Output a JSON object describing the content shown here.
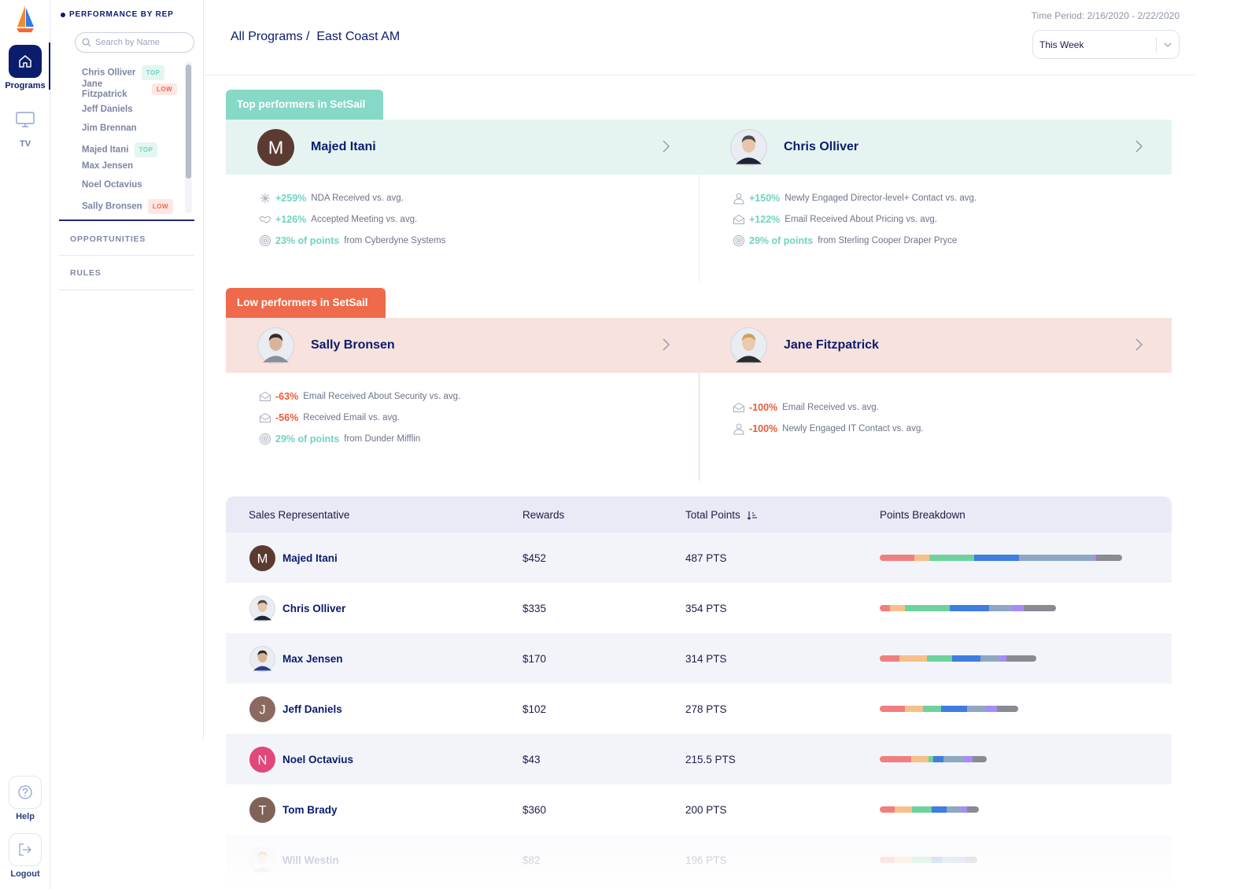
{
  "rail": {
    "programs_label": "Programs",
    "tv_label": "TV",
    "help_label": "Help",
    "logout_label": "Logout",
    "icons": {
      "programs": "home-icon",
      "tv": "monitor-icon",
      "help": "question-circle-icon",
      "logout": "logout-icon",
      "logo": "sailboat-logo"
    }
  },
  "panel": {
    "title": "PERFORMANCE BY REP",
    "search_placeholder": "Search by Name",
    "reps": [
      {
        "name": "Chris Olliver",
        "tag": "TOP"
      },
      {
        "name": "Jane Fitzpatrick",
        "tag": "LOW"
      },
      {
        "name": "Jeff Daniels",
        "tag": ""
      },
      {
        "name": "Jim Brennan",
        "tag": ""
      },
      {
        "name": "Majed Itani",
        "tag": "TOP"
      },
      {
        "name": "Max Jensen",
        "tag": ""
      },
      {
        "name": "Noel Octavius",
        "tag": ""
      },
      {
        "name": "Sally Bronsen",
        "tag": "LOW"
      }
    ],
    "opportunities_label": "OPPORTUNITIES",
    "rules_label": "RULES"
  },
  "header": {
    "breadcrumb_root": "All Programs /",
    "breadcrumb_current": "East Coast AM",
    "time_period": "Time Period: 2/16/2020 - 2/22/2020",
    "period_select": "This Week"
  },
  "top_performers": {
    "tab_label": "Top performers in SetSail",
    "cards": [
      {
        "name": "Majed Itani",
        "avatar": {
          "type": "initial",
          "initial": "M",
          "color": "#5b3a32"
        },
        "stats": [
          {
            "icon": "sparkle-icon",
            "value": "+259%",
            "text": "NDA Received vs. avg.",
            "tone": "pos"
          },
          {
            "icon": "handshake-icon",
            "value": "+126%",
            "text": "Accepted Meeting vs. avg.",
            "tone": "pos"
          },
          {
            "icon": "target-icon",
            "value": "23% of points",
            "text": "from Cyberdyne Systems",
            "tone": "pos"
          }
        ]
      },
      {
        "name": "Chris Olliver",
        "avatar": {
          "type": "photo",
          "skin": "#e8c4a8",
          "hair": "#4a4a4a",
          "shirt": "#1e2433"
        },
        "stats": [
          {
            "icon": "person-icon",
            "value": "+150%",
            "text": "Newly Engaged Director-level+ Contact vs. avg.",
            "tone": "pos"
          },
          {
            "icon": "envelope-open-icon",
            "value": "+122%",
            "text": "Email Received About Pricing vs. avg.",
            "tone": "pos"
          },
          {
            "icon": "target-icon",
            "value": "29% of points",
            "text": "from Sterling Cooper Draper Pryce",
            "tone": "pos"
          }
        ]
      }
    ]
  },
  "low_performers": {
    "tab_label": "Low performers in SetSail",
    "cards": [
      {
        "name": "Sally Bronsen",
        "avatar": {
          "type": "photo",
          "skin": "#d9b49b",
          "hair": "#3a2a20",
          "shirt": "#8a8f9a"
        },
        "stats": [
          {
            "icon": "envelope-open-icon",
            "value": "-63%",
            "text": "Email Received About Security vs. avg.",
            "tone": "neg"
          },
          {
            "icon": "envelope-open-icon",
            "value": "-56%",
            "text": "Received Email vs. avg.",
            "tone": "neg"
          },
          {
            "icon": "target-icon",
            "value": "29% of points",
            "text": "from Dunder Mifflin",
            "tone": "pos"
          }
        ]
      },
      {
        "name": "Jane Fitzpatrick",
        "avatar": {
          "type": "photo",
          "skin": "#eac9ae",
          "hair": "#c9a25a",
          "shirt": "#2b2b2b"
        },
        "stats": [
          {
            "icon": "envelope-open-icon",
            "value": "-100%",
            "text": "Email Received vs. avg.",
            "tone": "neg"
          },
          {
            "icon": "person-icon",
            "value": "-100%",
            "text": "Newly Engaged IT Contact vs. avg.",
            "tone": "neg"
          }
        ]
      }
    ]
  },
  "table": {
    "columns": [
      "Sales Representative",
      "Rewards",
      "Total Points",
      "Points Breakdown"
    ],
    "sort_icon": "sort-descending-icon",
    "breakdown_colors": [
      "#f07f7f",
      "#f7c08a",
      "#6fd29e",
      "#3f7de0",
      "#8fa7c2",
      "#a78bfa",
      "#8a8a93"
    ],
    "max_points": 487,
    "rows": [
      {
        "name": "Majed Itani",
        "rewards": "$452",
        "points": "487 PTS",
        "total": 487,
        "avatar": {
          "type": "initial",
          "initial": "M",
          "color": "#5b3a32"
        },
        "breakdown": [
          70,
          30,
          90,
          90,
          150,
          5,
          52
        ]
      },
      {
        "name": "Chris Olliver",
        "rewards": "$335",
        "points": "354 PTS",
        "total": 354,
        "avatar": {
          "type": "photo",
          "skin": "#e8c4a8",
          "hair": "#4a4a4a",
          "shirt": "#1e2433"
        },
        "breakdown": [
          20,
          30,
          90,
          80,
          45,
          25,
          64
        ]
      },
      {
        "name": "Max Jensen",
        "rewards": "$170",
        "points": "314 PTS",
        "total": 314,
        "avatar": {
          "type": "photo",
          "skin": "#d8b292",
          "hair": "#2e2a28",
          "shirt": "#2c3d8f"
        },
        "breakdown": [
          40,
          55,
          50,
          57,
          40,
          12,
          60
        ]
      },
      {
        "name": "Jeff Daniels",
        "rewards": "$102",
        "points": "278 PTS",
        "total": 278,
        "avatar": {
          "type": "initial",
          "initial": "J",
          "color": "#8a6a60"
        },
        "breakdown": [
          50,
          37,
          36,
          53,
          37,
          23,
          42
        ]
      },
      {
        "name": "Noel Octavius",
        "rewards": "$43",
        "points": "215.5 PTS",
        "total": 215.5,
        "avatar": {
          "type": "initial",
          "initial": "N",
          "color": "#e0477a"
        },
        "breakdown": [
          63,
          35,
          10,
          20,
          40,
          19,
          28
        ]
      },
      {
        "name": "Tom Brady",
        "rewards": "$360",
        "points": "200 PTS",
        "total": 200,
        "avatar": {
          "type": "initial",
          "initial": "T",
          "color": "#7f6258"
        },
        "breakdown": [
          30,
          35,
          40,
          30,
          30,
          10,
          25
        ]
      },
      {
        "name": "Will Westin",
        "rewards": "$82",
        "points": "196 PTS",
        "total": 196,
        "avatar": {
          "type": "photo",
          "skin": "#f1d4bd",
          "hair": "#c4a07a",
          "shirt": "#c9b8a6"
        },
        "breakdown": [
          30,
          35,
          40,
          20,
          30,
          16,
          25
        ]
      }
    ]
  }
}
